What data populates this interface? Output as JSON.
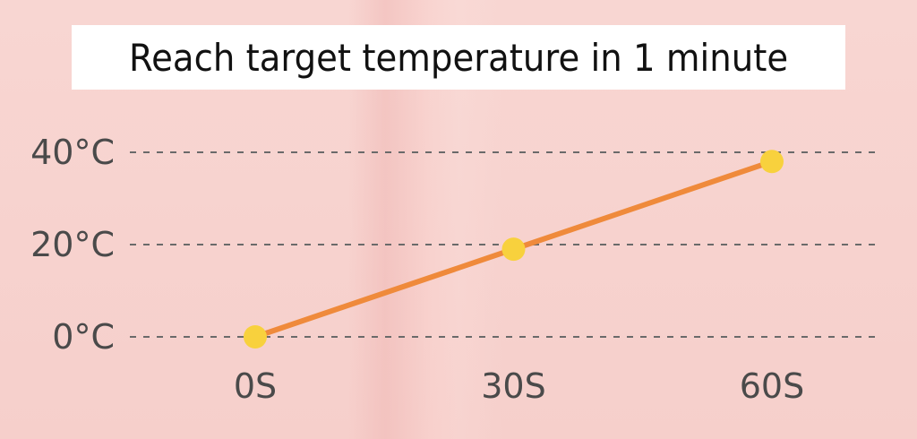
{
  "colors": {
    "line": "#ef8a3b",
    "point": "#f8d13d",
    "grid": "#6a6a6a",
    "text": "#4a4a4a",
    "title_bg": "#ffffff"
  },
  "chart_data": {
    "type": "line",
    "title": "Reach target temperature in 1 minute",
    "x": [
      0,
      30,
      60
    ],
    "x_tick_labels": [
      "0S",
      "30S",
      "60S"
    ],
    "y_tick_values": [
      0,
      20,
      40
    ],
    "y_tick_labels": [
      "0°C",
      "20°C",
      "40°C"
    ],
    "ylim": [
      0,
      40
    ],
    "series": [
      {
        "values": [
          0,
          19,
          38
        ]
      }
    ],
    "grid": "horizontal-dashed"
  }
}
